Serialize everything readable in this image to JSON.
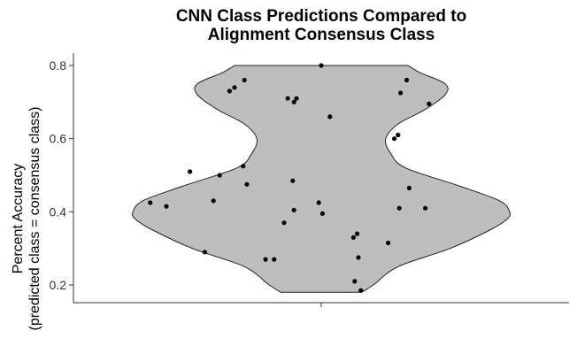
{
  "chart_data": {
    "type": "violin",
    "title_line1": "CNN Class Predictions Compared to",
    "title_line2": "Alignment Consensus Class",
    "ylabel_line1": "Percent Accuracy",
    "ylabel_line2": "(predicted class = consensus class)",
    "xlabel": "",
    "ylim": [
      0.15,
      0.82
    ],
    "yticks": [
      0.2,
      0.4,
      0.6,
      0.8
    ],
    "ytick_labels": [
      "0.2",
      "0.4",
      "0.6",
      "0.8"
    ],
    "grid": false,
    "violin_fill": "#bebebe",
    "violin_stroke": "#222222",
    "point_color": "#000000",
    "violin_halfwidth_profile": [
      {
        "y": 0.18,
        "w": 0.163
      },
      {
        "y": 0.2,
        "w": 0.21
      },
      {
        "y": 0.25,
        "w": 0.31
      },
      {
        "y": 0.3,
        "w": 0.52
      },
      {
        "y": 0.35,
        "w": 0.68
      },
      {
        "y": 0.38,
        "w": 0.75
      },
      {
        "y": 0.4,
        "w": 0.76
      },
      {
        "y": 0.43,
        "w": 0.72
      },
      {
        "y": 0.47,
        "w": 0.56
      },
      {
        "y": 0.52,
        "w": 0.34
      },
      {
        "y": 0.56,
        "w": 0.28
      },
      {
        "y": 0.6,
        "w": 0.26
      },
      {
        "y": 0.64,
        "w": 0.31
      },
      {
        "y": 0.68,
        "w": 0.42
      },
      {
        "y": 0.72,
        "w": 0.5
      },
      {
        "y": 0.75,
        "w": 0.5
      },
      {
        "y": 0.78,
        "w": 0.4
      },
      {
        "y": 0.8,
        "w": 0.35
      }
    ],
    "points": [
      {
        "x": -0.69,
        "y": 0.425
      },
      {
        "x": -0.625,
        "y": 0.415
      },
      {
        "x": -0.53,
        "y": 0.51
      },
      {
        "x": -0.47,
        "y": 0.29
      },
      {
        "x": -0.435,
        "y": 0.43
      },
      {
        "x": -0.41,
        "y": 0.5
      },
      {
        "x": -0.37,
        "y": 0.73
      },
      {
        "x": -0.35,
        "y": 0.74
      },
      {
        "x": -0.31,
        "y": 0.76
      },
      {
        "x": -0.315,
        "y": 0.525
      },
      {
        "x": -0.3,
        "y": 0.475
      },
      {
        "x": -0.225,
        "y": 0.27
      },
      {
        "x": -0.19,
        "y": 0.27
      },
      {
        "x": -0.15,
        "y": 0.37
      },
      {
        "x": -0.135,
        "y": 0.71
      },
      {
        "x": -0.11,
        "y": 0.7
      },
      {
        "x": -0.1,
        "y": 0.71
      },
      {
        "x": -0.115,
        "y": 0.485
      },
      {
        "x": -0.11,
        "y": 0.405
      },
      {
        "x": 0.0,
        "y": 0.8
      },
      {
        "x": 0.035,
        "y": 0.66
      },
      {
        "x": -0.01,
        "y": 0.425
      },
      {
        "x": 0.005,
        "y": 0.395
      },
      {
        "x": 0.13,
        "y": 0.33
      },
      {
        "x": 0.145,
        "y": 0.34
      },
      {
        "x": 0.15,
        "y": 0.275
      },
      {
        "x": 0.135,
        "y": 0.21
      },
      {
        "x": 0.16,
        "y": 0.185
      },
      {
        "x": 0.27,
        "y": 0.315
      },
      {
        "x": 0.295,
        "y": 0.6
      },
      {
        "x": 0.31,
        "y": 0.61
      },
      {
        "x": 0.315,
        "y": 0.41
      },
      {
        "x": 0.32,
        "y": 0.725
      },
      {
        "x": 0.345,
        "y": 0.76
      },
      {
        "x": 0.355,
        "y": 0.465
      },
      {
        "x": 0.42,
        "y": 0.41
      },
      {
        "x": 0.435,
        "y": 0.695
      }
    ]
  }
}
